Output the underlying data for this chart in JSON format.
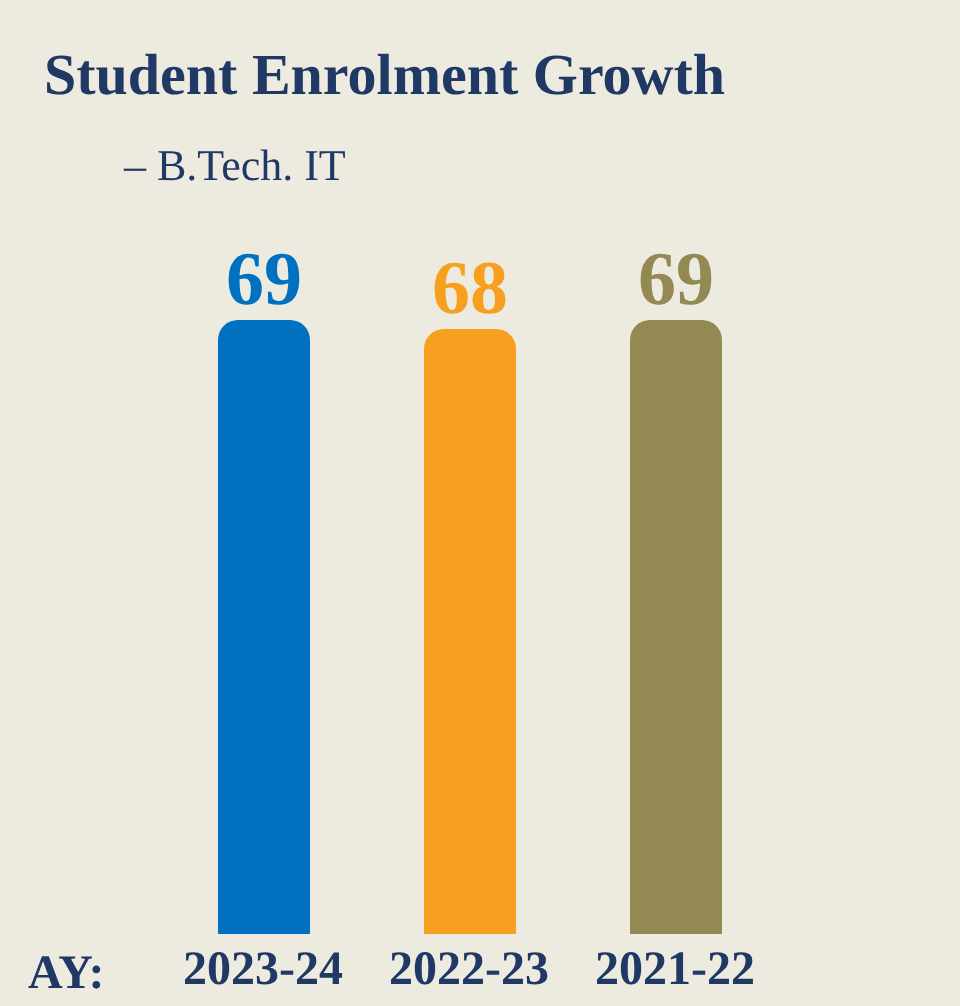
{
  "chart_data": {
    "type": "bar",
    "title": "Student Enrolment Growth",
    "subtitle": "– B.Tech. IT",
    "xlabel": "AY:",
    "categories": [
      "2023-24",
      "2022-23",
      "2021-22"
    ],
    "values": [
      69,
      68,
      69
    ],
    "colors": [
      "#0070c0",
      "#f7a020",
      "#938953"
    ],
    "data_labels": true,
    "grid": false,
    "legend": false
  }
}
